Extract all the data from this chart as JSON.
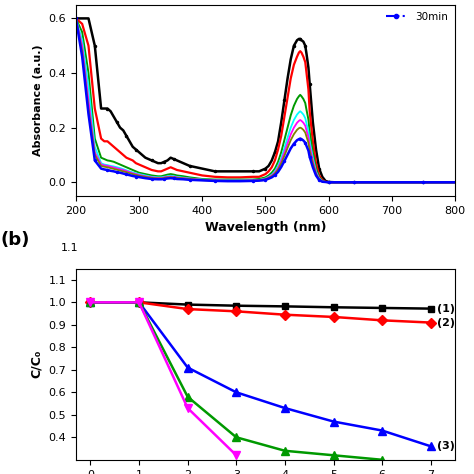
{
  "panel_a": {
    "xlabel": "Wavelength (nm)",
    "ylabel": "Absorbance (a",
    "xlim": [
      200,
      800
    ],
    "ylim": [
      -0.05,
      0.65
    ],
    "yticks": [
      0.0,
      0.2,
      0.4,
      0.6
    ],
    "legend_text": "30min",
    "legend_color": "blue",
    "curves": [
      {
        "color": "black",
        "style": "-",
        "marker": "o",
        "markersize": 1.5,
        "lw": 1.8,
        "x": [
          200,
          210,
          220,
          230,
          240,
          245,
          250,
          255,
          260,
          265,
          270,
          275,
          280,
          285,
          290,
          295,
          300,
          310,
          320,
          330,
          335,
          340,
          345,
          350,
          355,
          360,
          370,
          380,
          390,
          400,
          420,
          440,
          460,
          480,
          490,
          495,
          500,
          505,
          510,
          515,
          520,
          525,
          530,
          535,
          540,
          545,
          550,
          553,
          555,
          557,
          560,
          563,
          565,
          568,
          570,
          575,
          580,
          585,
          590,
          595,
          600,
          610,
          620,
          640,
          660,
          700,
          750,
          800
        ],
        "y": [
          0.6,
          0.6,
          0.6,
          0.5,
          0.27,
          0.27,
          0.27,
          0.26,
          0.24,
          0.22,
          0.2,
          0.19,
          0.17,
          0.15,
          0.13,
          0.12,
          0.11,
          0.09,
          0.08,
          0.07,
          0.07,
          0.075,
          0.08,
          0.09,
          0.085,
          0.08,
          0.07,
          0.06,
          0.055,
          0.05,
          0.04,
          0.04,
          0.04,
          0.04,
          0.04,
          0.045,
          0.05,
          0.06,
          0.08,
          0.11,
          0.15,
          0.22,
          0.3,
          0.38,
          0.45,
          0.5,
          0.52,
          0.525,
          0.525,
          0.52,
          0.515,
          0.5,
          0.47,
          0.42,
          0.36,
          0.22,
          0.12,
          0.05,
          0.02,
          0.005,
          0.001,
          0.0,
          0.0,
          0.0,
          0.0,
          0.0,
          0.0,
          0.0
        ]
      },
      {
        "color": "red",
        "style": "-",
        "marker": "",
        "markersize": 0,
        "lw": 1.6,
        "x": [
          200,
          210,
          220,
          230,
          240,
          245,
          250,
          255,
          260,
          265,
          270,
          275,
          280,
          285,
          290,
          295,
          300,
          310,
          320,
          330,
          335,
          340,
          345,
          350,
          355,
          360,
          370,
          380,
          390,
          400,
          420,
          440,
          460,
          480,
          490,
          495,
          500,
          505,
          510,
          515,
          520,
          525,
          530,
          535,
          540,
          545,
          550,
          553,
          555,
          557,
          560,
          563,
          565,
          568,
          570,
          575,
          580,
          585,
          590,
          595,
          600,
          610,
          620,
          640,
          660,
          700,
          750,
          800
        ],
        "y": [
          0.6,
          0.58,
          0.5,
          0.27,
          0.16,
          0.15,
          0.15,
          0.14,
          0.13,
          0.12,
          0.11,
          0.1,
          0.09,
          0.085,
          0.08,
          0.07,
          0.065,
          0.055,
          0.045,
          0.04,
          0.04,
          0.045,
          0.05,
          0.055,
          0.05,
          0.045,
          0.04,
          0.035,
          0.03,
          0.025,
          0.02,
          0.018,
          0.018,
          0.02,
          0.02,
          0.025,
          0.03,
          0.04,
          0.055,
          0.08,
          0.12,
          0.17,
          0.24,
          0.31,
          0.38,
          0.43,
          0.46,
          0.475,
          0.48,
          0.475,
          0.46,
          0.44,
          0.4,
          0.34,
          0.26,
          0.15,
          0.07,
          0.025,
          0.008,
          0.002,
          0.0,
          0.0,
          0.0,
          0.0,
          0.0,
          0.0,
          0.0,
          0.0
        ]
      },
      {
        "color": "#009900",
        "style": "-",
        "marker": "",
        "markersize": 0,
        "lw": 1.4,
        "x": [
          200,
          210,
          220,
          230,
          240,
          245,
          250,
          255,
          260,
          265,
          270,
          275,
          280,
          285,
          290,
          295,
          300,
          310,
          320,
          330,
          335,
          340,
          345,
          350,
          355,
          360,
          370,
          380,
          390,
          400,
          420,
          440,
          460,
          480,
          490,
          495,
          500,
          505,
          510,
          515,
          520,
          525,
          530,
          535,
          540,
          545,
          550,
          553,
          555,
          557,
          560,
          563,
          565,
          568,
          570,
          575,
          580,
          585,
          590,
          595,
          600,
          610,
          620,
          640,
          660,
          700,
          750,
          800
        ],
        "y": [
          0.6,
          0.55,
          0.4,
          0.16,
          0.09,
          0.085,
          0.08,
          0.078,
          0.075,
          0.07,
          0.065,
          0.06,
          0.055,
          0.05,
          0.045,
          0.04,
          0.035,
          0.03,
          0.025,
          0.022,
          0.022,
          0.025,
          0.028,
          0.03,
          0.028,
          0.025,
          0.022,
          0.018,
          0.015,
          0.012,
          0.01,
          0.01,
          0.01,
          0.01,
          0.012,
          0.015,
          0.018,
          0.025,
          0.035,
          0.05,
          0.075,
          0.11,
          0.155,
          0.2,
          0.245,
          0.28,
          0.305,
          0.315,
          0.32,
          0.315,
          0.305,
          0.29,
          0.265,
          0.23,
          0.185,
          0.11,
          0.05,
          0.018,
          0.005,
          0.001,
          0.0,
          0.0,
          0.0,
          0.0,
          0.0,
          0.0,
          0.0,
          0.0
        ]
      },
      {
        "color": "cyan",
        "style": "-",
        "marker": "",
        "markersize": 0,
        "lw": 1.3,
        "x": [
          200,
          210,
          220,
          230,
          240,
          245,
          250,
          255,
          260,
          265,
          270,
          275,
          280,
          285,
          290,
          295,
          300,
          310,
          320,
          330,
          335,
          340,
          345,
          350,
          355,
          360,
          370,
          380,
          390,
          400,
          420,
          440,
          460,
          480,
          490,
          495,
          500,
          505,
          510,
          515,
          520,
          525,
          530,
          535,
          540,
          545,
          550,
          553,
          555,
          557,
          560,
          563,
          565,
          568,
          570,
          575,
          580,
          585,
          590,
          595,
          600,
          610,
          620,
          640,
          660,
          700,
          750,
          800
        ],
        "y": [
          0.6,
          0.52,
          0.35,
          0.13,
          0.07,
          0.065,
          0.063,
          0.06,
          0.058,
          0.055,
          0.052,
          0.048,
          0.044,
          0.04,
          0.036,
          0.033,
          0.03,
          0.025,
          0.02,
          0.018,
          0.018,
          0.02,
          0.022,
          0.024,
          0.022,
          0.02,
          0.017,
          0.014,
          0.012,
          0.01,
          0.008,
          0.007,
          0.007,
          0.008,
          0.009,
          0.011,
          0.014,
          0.02,
          0.028,
          0.04,
          0.06,
          0.088,
          0.125,
          0.163,
          0.2,
          0.228,
          0.248,
          0.256,
          0.26,
          0.256,
          0.248,
          0.235,
          0.215,
          0.187,
          0.15,
          0.09,
          0.04,
          0.014,
          0.004,
          0.001,
          0.0,
          0.0,
          0.0,
          0.0,
          0.0,
          0.0,
          0.0,
          0.0
        ]
      },
      {
        "color": "magenta",
        "style": "-",
        "marker": "",
        "markersize": 0,
        "lw": 1.3,
        "x": [
          200,
          210,
          220,
          230,
          240,
          245,
          250,
          255,
          260,
          265,
          270,
          275,
          280,
          285,
          290,
          295,
          300,
          310,
          320,
          330,
          335,
          340,
          345,
          350,
          355,
          360,
          370,
          380,
          390,
          400,
          420,
          440,
          460,
          480,
          490,
          495,
          500,
          505,
          510,
          515,
          520,
          525,
          530,
          535,
          540,
          545,
          550,
          553,
          555,
          557,
          560,
          563,
          565,
          568,
          570,
          575,
          580,
          585,
          590,
          595,
          600,
          610,
          620,
          640,
          660,
          700,
          750,
          800
        ],
        "y": [
          0.6,
          0.5,
          0.3,
          0.11,
          0.065,
          0.062,
          0.06,
          0.057,
          0.054,
          0.051,
          0.048,
          0.045,
          0.041,
          0.037,
          0.033,
          0.03,
          0.027,
          0.022,
          0.018,
          0.016,
          0.016,
          0.018,
          0.02,
          0.021,
          0.02,
          0.018,
          0.015,
          0.013,
          0.011,
          0.009,
          0.007,
          0.006,
          0.006,
          0.007,
          0.008,
          0.01,
          0.012,
          0.018,
          0.025,
          0.036,
          0.053,
          0.078,
          0.11,
          0.143,
          0.175,
          0.2,
          0.218,
          0.225,
          0.228,
          0.225,
          0.218,
          0.207,
          0.19,
          0.165,
          0.132,
          0.079,
          0.035,
          0.012,
          0.003,
          0.001,
          0.0,
          0.0,
          0.0,
          0.0,
          0.0,
          0.0,
          0.0,
          0.0
        ]
      },
      {
        "color": "#808000",
        "style": "-",
        "marker": "",
        "markersize": 0,
        "lw": 1.3,
        "x": [
          200,
          210,
          220,
          230,
          240,
          245,
          250,
          255,
          260,
          265,
          270,
          275,
          280,
          285,
          290,
          295,
          300,
          310,
          320,
          330,
          335,
          340,
          345,
          350,
          355,
          360,
          370,
          380,
          390,
          400,
          420,
          440,
          460,
          480,
          490,
          495,
          500,
          505,
          510,
          515,
          520,
          525,
          530,
          535,
          540,
          545,
          550,
          553,
          555,
          557,
          560,
          563,
          565,
          568,
          570,
          575,
          580,
          585,
          590,
          595,
          600,
          610,
          620,
          640,
          660,
          700,
          750,
          800
        ],
        "y": [
          0.6,
          0.48,
          0.27,
          0.1,
          0.06,
          0.057,
          0.055,
          0.052,
          0.049,
          0.046,
          0.043,
          0.04,
          0.037,
          0.033,
          0.03,
          0.027,
          0.024,
          0.02,
          0.016,
          0.014,
          0.014,
          0.016,
          0.018,
          0.019,
          0.018,
          0.016,
          0.014,
          0.012,
          0.01,
          0.008,
          0.006,
          0.005,
          0.005,
          0.006,
          0.007,
          0.009,
          0.011,
          0.016,
          0.022,
          0.032,
          0.047,
          0.069,
          0.097,
          0.126,
          0.154,
          0.176,
          0.192,
          0.198,
          0.2,
          0.198,
          0.192,
          0.182,
          0.167,
          0.145,
          0.116,
          0.069,
          0.031,
          0.01,
          0.003,
          0.001,
          0.0,
          0.0,
          0.0,
          0.0,
          0.0,
          0.0,
          0.0,
          0.0
        ]
      },
      {
        "color": "blue",
        "style": "-",
        "marker": "o",
        "markersize": 1.5,
        "lw": 1.8,
        "x": [
          200,
          210,
          220,
          230,
          240,
          245,
          250,
          255,
          260,
          265,
          270,
          275,
          280,
          285,
          290,
          295,
          300,
          310,
          320,
          330,
          335,
          340,
          345,
          350,
          355,
          360,
          370,
          380,
          390,
          400,
          420,
          440,
          460,
          480,
          490,
          495,
          500,
          505,
          510,
          515,
          520,
          525,
          530,
          535,
          540,
          545,
          550,
          553,
          555,
          557,
          560,
          563,
          565,
          568,
          570,
          575,
          580,
          585,
          590,
          595,
          600,
          610,
          620,
          640,
          660,
          700,
          750,
          800
        ],
        "y": [
          0.6,
          0.46,
          0.25,
          0.08,
          0.05,
          0.047,
          0.045,
          0.042,
          0.04,
          0.037,
          0.035,
          0.032,
          0.029,
          0.026,
          0.023,
          0.021,
          0.019,
          0.015,
          0.012,
          0.011,
          0.011,
          0.012,
          0.014,
          0.015,
          0.014,
          0.012,
          0.011,
          0.009,
          0.008,
          0.007,
          0.005,
          0.004,
          0.004,
          0.005,
          0.006,
          0.007,
          0.009,
          0.013,
          0.018,
          0.026,
          0.038,
          0.056,
          0.078,
          0.101,
          0.124,
          0.141,
          0.154,
          0.158,
          0.16,
          0.158,
          0.153,
          0.145,
          0.133,
          0.116,
          0.093,
          0.055,
          0.025,
          0.008,
          0.002,
          0.001,
          0.0,
          0.0,
          0.0,
          0.0,
          0.0,
          0.0,
          0.0,
          0.0
        ]
      }
    ]
  },
  "panel_b": {
    "ylabel": "C/C₀",
    "xlim": [
      -0.3,
      7.5
    ],
    "ylim": [
      0.3,
      1.15
    ],
    "yticks": [
      0.4,
      0.5,
      0.6,
      0.7,
      0.8,
      0.9,
      1.0,
      1.1
    ],
    "xticks": [
      0,
      1,
      2,
      3,
      4,
      5,
      6,
      7
    ],
    "curves": [
      {
        "label": "(1)",
        "color": "black",
        "marker": "s",
        "markersize": 5,
        "lw": 1.8,
        "x": [
          0,
          1,
          2,
          3,
          4,
          5,
          6,
          7
        ],
        "y": [
          1.0,
          1.0,
          0.99,
          0.985,
          0.982,
          0.978,
          0.975,
          0.972
        ]
      },
      {
        "label": "(2)",
        "color": "red",
        "marker": "D",
        "markersize": 5,
        "lw": 1.8,
        "x": [
          0,
          1,
          2,
          3,
          4,
          5,
          6,
          7
        ],
        "y": [
          1.0,
          1.0,
          0.97,
          0.96,
          0.945,
          0.935,
          0.92,
          0.91
        ]
      },
      {
        "label": "(3)",
        "color": "blue",
        "marker": "^",
        "markersize": 6,
        "lw": 1.8,
        "x": [
          0,
          1,
          2,
          3,
          4,
          5,
          6,
          7
        ],
        "y": [
          1.0,
          1.0,
          0.71,
          0.6,
          0.53,
          0.47,
          0.43,
          0.36
        ]
      },
      {
        "label": "",
        "color": "#009900",
        "marker": "^",
        "markersize": 6,
        "lw": 1.8,
        "x": [
          0,
          1,
          2,
          3,
          4,
          5,
          6
        ],
        "y": [
          1.0,
          1.0,
          0.58,
          0.4,
          0.34,
          0.32,
          0.3
        ]
      },
      {
        "label": "",
        "color": "magenta",
        "marker": "v",
        "markersize": 6,
        "lw": 1.8,
        "x": [
          0,
          1,
          2,
          3
        ],
        "y": [
          1.0,
          1.0,
          0.53,
          0.32
        ]
      }
    ]
  }
}
